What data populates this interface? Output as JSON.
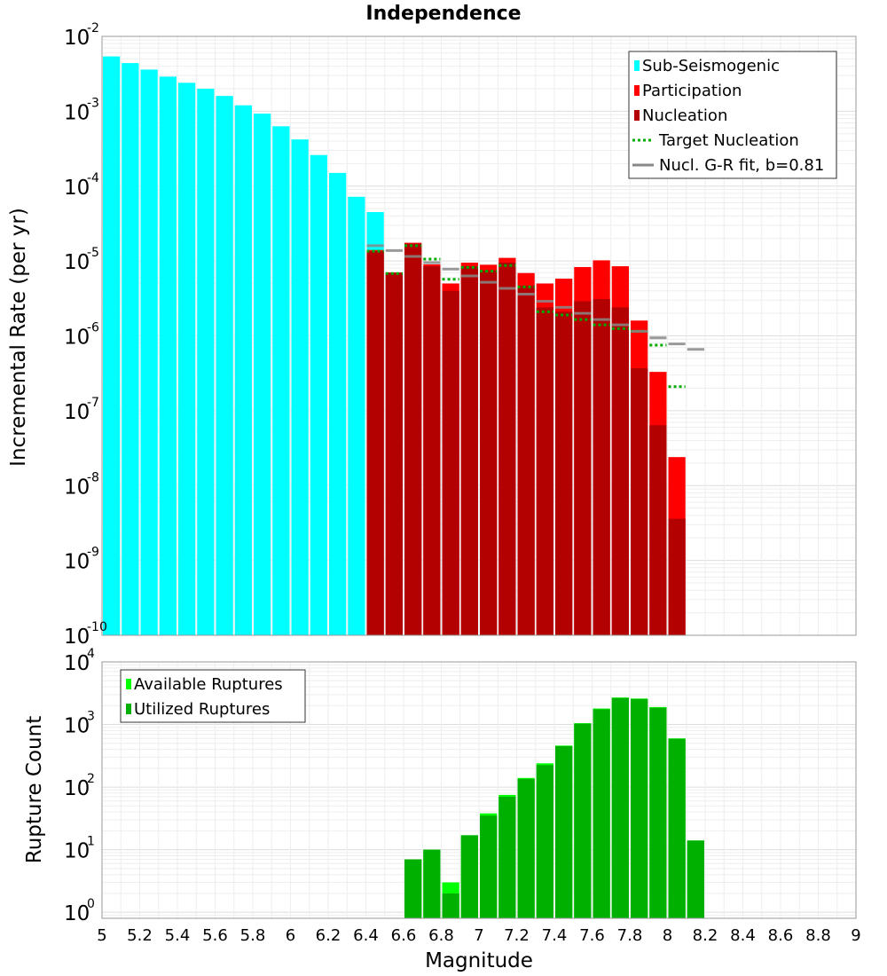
{
  "chart_data": [
    {
      "type": "bar",
      "title": "Independence",
      "ylabel": "Incremental Rate (per yr)",
      "xlabel": "",
      "yscale": "log",
      "ylim": [
        1e-10,
        0.01
      ],
      "xlim": [
        5,
        9
      ],
      "bin_width": 0.1,
      "grid": true,
      "legend_position": "top-right",
      "y_tick_labels": [
        {
          "value": 1e-10,
          "base": "10",
          "exp": "-10"
        },
        {
          "value": 1e-09,
          "base": "10",
          "exp": "-9"
        },
        {
          "value": 1e-08,
          "base": "10",
          "exp": "-8"
        },
        {
          "value": 1e-07,
          "base": "10",
          "exp": "-7"
        },
        {
          "value": 1e-06,
          "base": "10",
          "exp": "-6"
        },
        {
          "value": 1e-05,
          "base": "10",
          "exp": "-5"
        },
        {
          "value": 0.0001,
          "base": "10",
          "exp": "-4"
        },
        {
          "value": 0.001,
          "base": "10",
          "exp": "-3"
        },
        {
          "value": 0.01,
          "base": "10",
          "exp": "-2"
        }
      ],
      "series": [
        {
          "name": "Sub-Seismogenic",
          "kind": "bar",
          "color": "#00ffff",
          "x": [
            5.05,
            5.15,
            5.25,
            5.35,
            5.45,
            5.55,
            5.65,
            5.75,
            5.85,
            5.95,
            6.05,
            6.15,
            6.25,
            6.35,
            6.45,
            6.55
          ],
          "values": [
            0.0054,
            0.0044,
            0.0036,
            0.0029,
            0.0024,
            0.002,
            0.0016,
            0.0012,
            0.00093,
            0.00063,
            0.00042,
            0.00026,
            0.00015,
            7.2e-05,
            4.5e-05,
            0
          ]
        },
        {
          "name": "Participation",
          "kind": "bar",
          "color": "#ff0000",
          "x": [
            6.45,
            6.55,
            6.65,
            6.75,
            6.85,
            6.95,
            7.05,
            7.15,
            7.25,
            7.35,
            7.45,
            7.55,
            7.65,
            7.75,
            7.85,
            7.95,
            8.05,
            8.15
          ],
          "values": [
            1.4e-05,
            7e-06,
            1.75e-05,
            9e-06,
            5e-06,
            9.5e-06,
            8.9e-06,
            1.1e-05,
            6.9e-06,
            5e-06,
            5.8e-06,
            8.3e-06,
            1.02e-05,
            8.5e-06,
            1.6e-06,
            3.3e-07,
            2.4e-08,
            0
          ]
        },
        {
          "name": "Nucleation",
          "kind": "bar",
          "color": "#b30000",
          "x": [
            6.45,
            6.55,
            6.65,
            6.75,
            6.85,
            6.95,
            7.05,
            7.15,
            7.25,
            7.35,
            7.45,
            7.55,
            7.65,
            7.75,
            7.85,
            7.95,
            8.05,
            8.15
          ],
          "values": [
            1.35e-05,
            7e-06,
            1.7e-05,
            8.5e-06,
            4e-06,
            8.5e-06,
            7.5e-06,
            9.5e-06,
            4.7e-06,
            2.4e-06,
            2.1e-06,
            2.9e-06,
            3.1e-06,
            2.4e-06,
            3.7e-07,
            6.4e-08,
            3.6e-09,
            0
          ]
        },
        {
          "name": "Target Nucleation",
          "kind": "step-dotted",
          "color": "#00aa00",
          "x": [
            6.45,
            6.55,
            6.65,
            6.75,
            6.85,
            6.95,
            7.05,
            7.15,
            7.25,
            7.35,
            7.45,
            7.55,
            7.65,
            7.75,
            7.85,
            7.95,
            8.05,
            8.15
          ],
          "values": [
            1.35e-05,
            6.8e-06,
            1.6e-05,
            1.06e-05,
            5.7e-06,
            8.2e-06,
            7.3e-06,
            8.7e-06,
            4.5e-06,
            2.1e-06,
            1.9e-06,
            1.65e-06,
            1.4e-06,
            1.25e-06,
            1.15e-06,
            7.5e-07,
            2.1e-07,
            0
          ]
        },
        {
          "name": "Nucl. G-R fit, b=0.81",
          "kind": "step-solid",
          "color": "#888888",
          "x": [
            6.45,
            6.55,
            6.65,
            6.75,
            6.85,
            6.95,
            7.05,
            7.15,
            7.25,
            7.35,
            7.45,
            7.55,
            7.65,
            7.75,
            7.85,
            7.95,
            8.05,
            8.15
          ],
          "values": [
            1.6e-05,
            1.38e-05,
            1.15e-05,
            9.5e-06,
            7.8e-06,
            6.3e-06,
            5.2e-06,
            4.3e-06,
            3.6e-06,
            2.9e-06,
            2.4e-06,
            2e-06,
            1.65e-06,
            1.4e-06,
            1.15e-06,
            9.4e-07,
            7.8e-07,
            6.6e-07
          ]
        }
      ]
    },
    {
      "type": "bar",
      "title": "",
      "ylabel": "Rupture Count",
      "xlabel": "Magnitude",
      "yscale": "log",
      "ylim": [
        0.8,
        10000
      ],
      "xlim": [
        5,
        9
      ],
      "bin_width": 0.1,
      "grid": true,
      "legend_position": "top-left",
      "x_tick_labels": [
        "5",
        "5.2",
        "5.4",
        "5.6",
        "5.8",
        "6",
        "6.2",
        "6.4",
        "6.6",
        "6.8",
        "7",
        "7.2",
        "7.4",
        "7.6",
        "7.8",
        "8",
        "8.2",
        "8.4",
        "8.6",
        "8.8",
        "9"
      ],
      "y_tick_labels": [
        {
          "value": 1,
          "base": "10",
          "exp": "0"
        },
        {
          "value": 10,
          "base": "10",
          "exp": "1"
        },
        {
          "value": 100,
          "base": "10",
          "exp": "2"
        },
        {
          "value": 1000,
          "base": "10",
          "exp": "3"
        },
        {
          "value": 10000,
          "base": "10",
          "exp": "4"
        }
      ],
      "series": [
        {
          "name": "Available Ruptures",
          "kind": "bar",
          "color": "#00ff00",
          "x": [
            6.65,
            6.75,
            6.85,
            6.95,
            7.05,
            7.15,
            7.25,
            7.35,
            7.45,
            7.55,
            7.65,
            7.75,
            7.85,
            7.95,
            8.05,
            8.15
          ],
          "values": [
            7,
            10,
            3,
            17,
            38,
            75,
            140,
            240,
            460,
            1050,
            1800,
            2700,
            2600,
            1900,
            600,
            14
          ]
        },
        {
          "name": "Utilized Ruptures",
          "kind": "bar",
          "color": "#00b000",
          "x": [
            6.65,
            6.75,
            6.85,
            6.95,
            7.05,
            7.15,
            7.25,
            7.35,
            7.45,
            7.55,
            7.65,
            7.75,
            7.85,
            7.95,
            8.05,
            8.15
          ],
          "values": [
            7,
            10,
            2,
            17,
            35,
            70,
            135,
            225,
            450,
            1030,
            1750,
            2650,
            2550,
            1850,
            590,
            14
          ]
        }
      ]
    }
  ]
}
